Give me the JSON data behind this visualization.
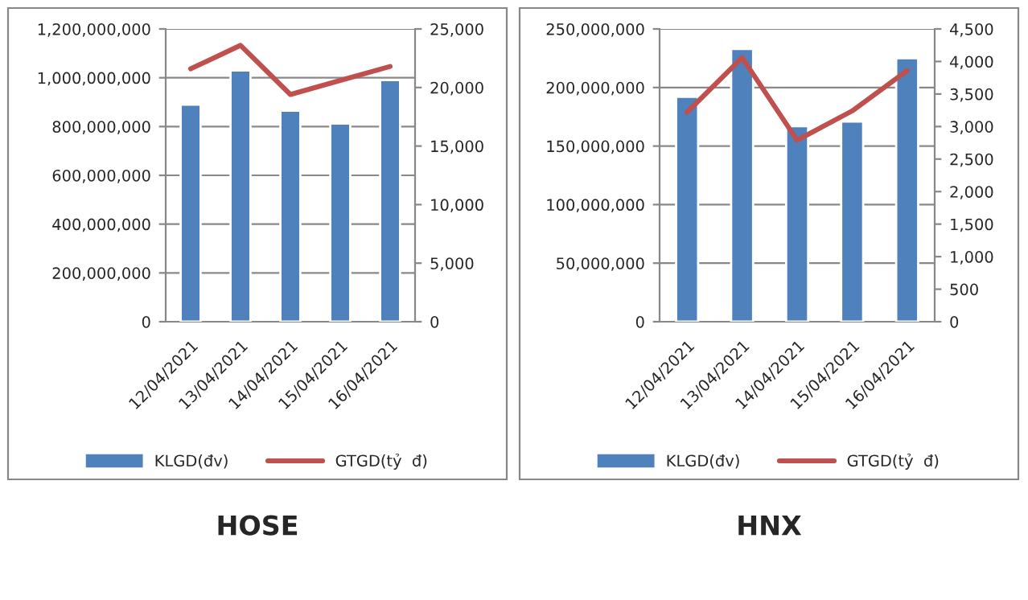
{
  "chart_data": [
    {
      "type": "bar",
      "title": "HOSE",
      "categories": [
        "12/04/2021",
        "13/04/2021",
        "14/04/2021",
        "15/04/2021",
        "16/04/2021"
      ],
      "series": [
        {
          "name": "KLGD(đv)",
          "color": "#4f81bd",
          "values": [
            890000000,
            1030000000,
            865000000,
            812000000,
            990000000
          ]
        },
        {
          "name": "GTGD(tỷ  đ)",
          "type": "line",
          "axis": "y2",
          "color": "#c0504d",
          "values": [
            21600,
            23600,
            19400,
            20600,
            21800
          ]
        }
      ],
      "ylim": [
        0,
        1200000000
      ],
      "yticks": [
        {
          "value": 0,
          "label": "0"
        },
        {
          "value": 200000000,
          "label": "200,000,000"
        },
        {
          "value": 400000000,
          "label": "400,000,000"
        },
        {
          "value": 600000000,
          "label": "600,000,000"
        },
        {
          "value": 800000000,
          "label": "800,000,000"
        },
        {
          "value": 1000000000,
          "label": "1,000,000,000"
        },
        {
          "value": 1200000000,
          "label": "1,200,000,000"
        }
      ],
      "y2lim": [
        0,
        25000
      ],
      "y2ticks": [
        {
          "value": 0,
          "label": "0"
        },
        {
          "value": 5000,
          "label": "5,000"
        },
        {
          "value": 10000,
          "label": "10,000"
        },
        {
          "value": 15000,
          "label": "15,000"
        },
        {
          "value": 20000,
          "label": "20,000"
        },
        {
          "value": 25000,
          "label": "25,000"
        }
      ],
      "grid": "y",
      "legend": "bottom",
      "marker": "none"
    },
    {
      "type": "bar",
      "title": "HNX",
      "categories": [
        "12/04/2021",
        "13/04/2021",
        "14/04/2021",
        "15/04/2021",
        "16/04/2021"
      ],
      "series": [
        {
          "name": "KLGD(đv)",
          "color": "#4f81bd",
          "values": [
            192000000,
            233000000,
            167000000,
            171000000,
            225000000
          ]
        },
        {
          "name": "GTGD(tỷ  đ)",
          "type": "line",
          "axis": "y2",
          "color": "#c0504d",
          "values": [
            3220,
            4060,
            2790,
            3240,
            3860
          ]
        }
      ],
      "ylim": [
        0,
        250000000
      ],
      "yticks": [
        {
          "value": 0,
          "label": "0"
        },
        {
          "value": 50000000,
          "label": "50,000,000"
        },
        {
          "value": 100000000,
          "label": "100,000,000"
        },
        {
          "value": 150000000,
          "label": "150,000,000"
        },
        {
          "value": 200000000,
          "label": "200,000,000"
        },
        {
          "value": 250000000,
          "label": "250,000,000"
        }
      ],
      "y2lim": [
        0,
        4500
      ],
      "y2ticks": [
        {
          "value": 0,
          "label": "0"
        },
        {
          "value": 500,
          "label": "500"
        },
        {
          "value": 1000,
          "label": "1,000"
        },
        {
          "value": 1500,
          "label": "1,500"
        },
        {
          "value": 2000,
          "label": "2,000"
        },
        {
          "value": 2500,
          "label": "2,500"
        },
        {
          "value": 3000,
          "label": "3,000"
        },
        {
          "value": 3500,
          "label": "3,500"
        },
        {
          "value": 4000,
          "label": "4,000"
        },
        {
          "value": 4500,
          "label": "4,500"
        }
      ],
      "grid": "y",
      "legend": "bottom",
      "marker": "none"
    }
  ]
}
